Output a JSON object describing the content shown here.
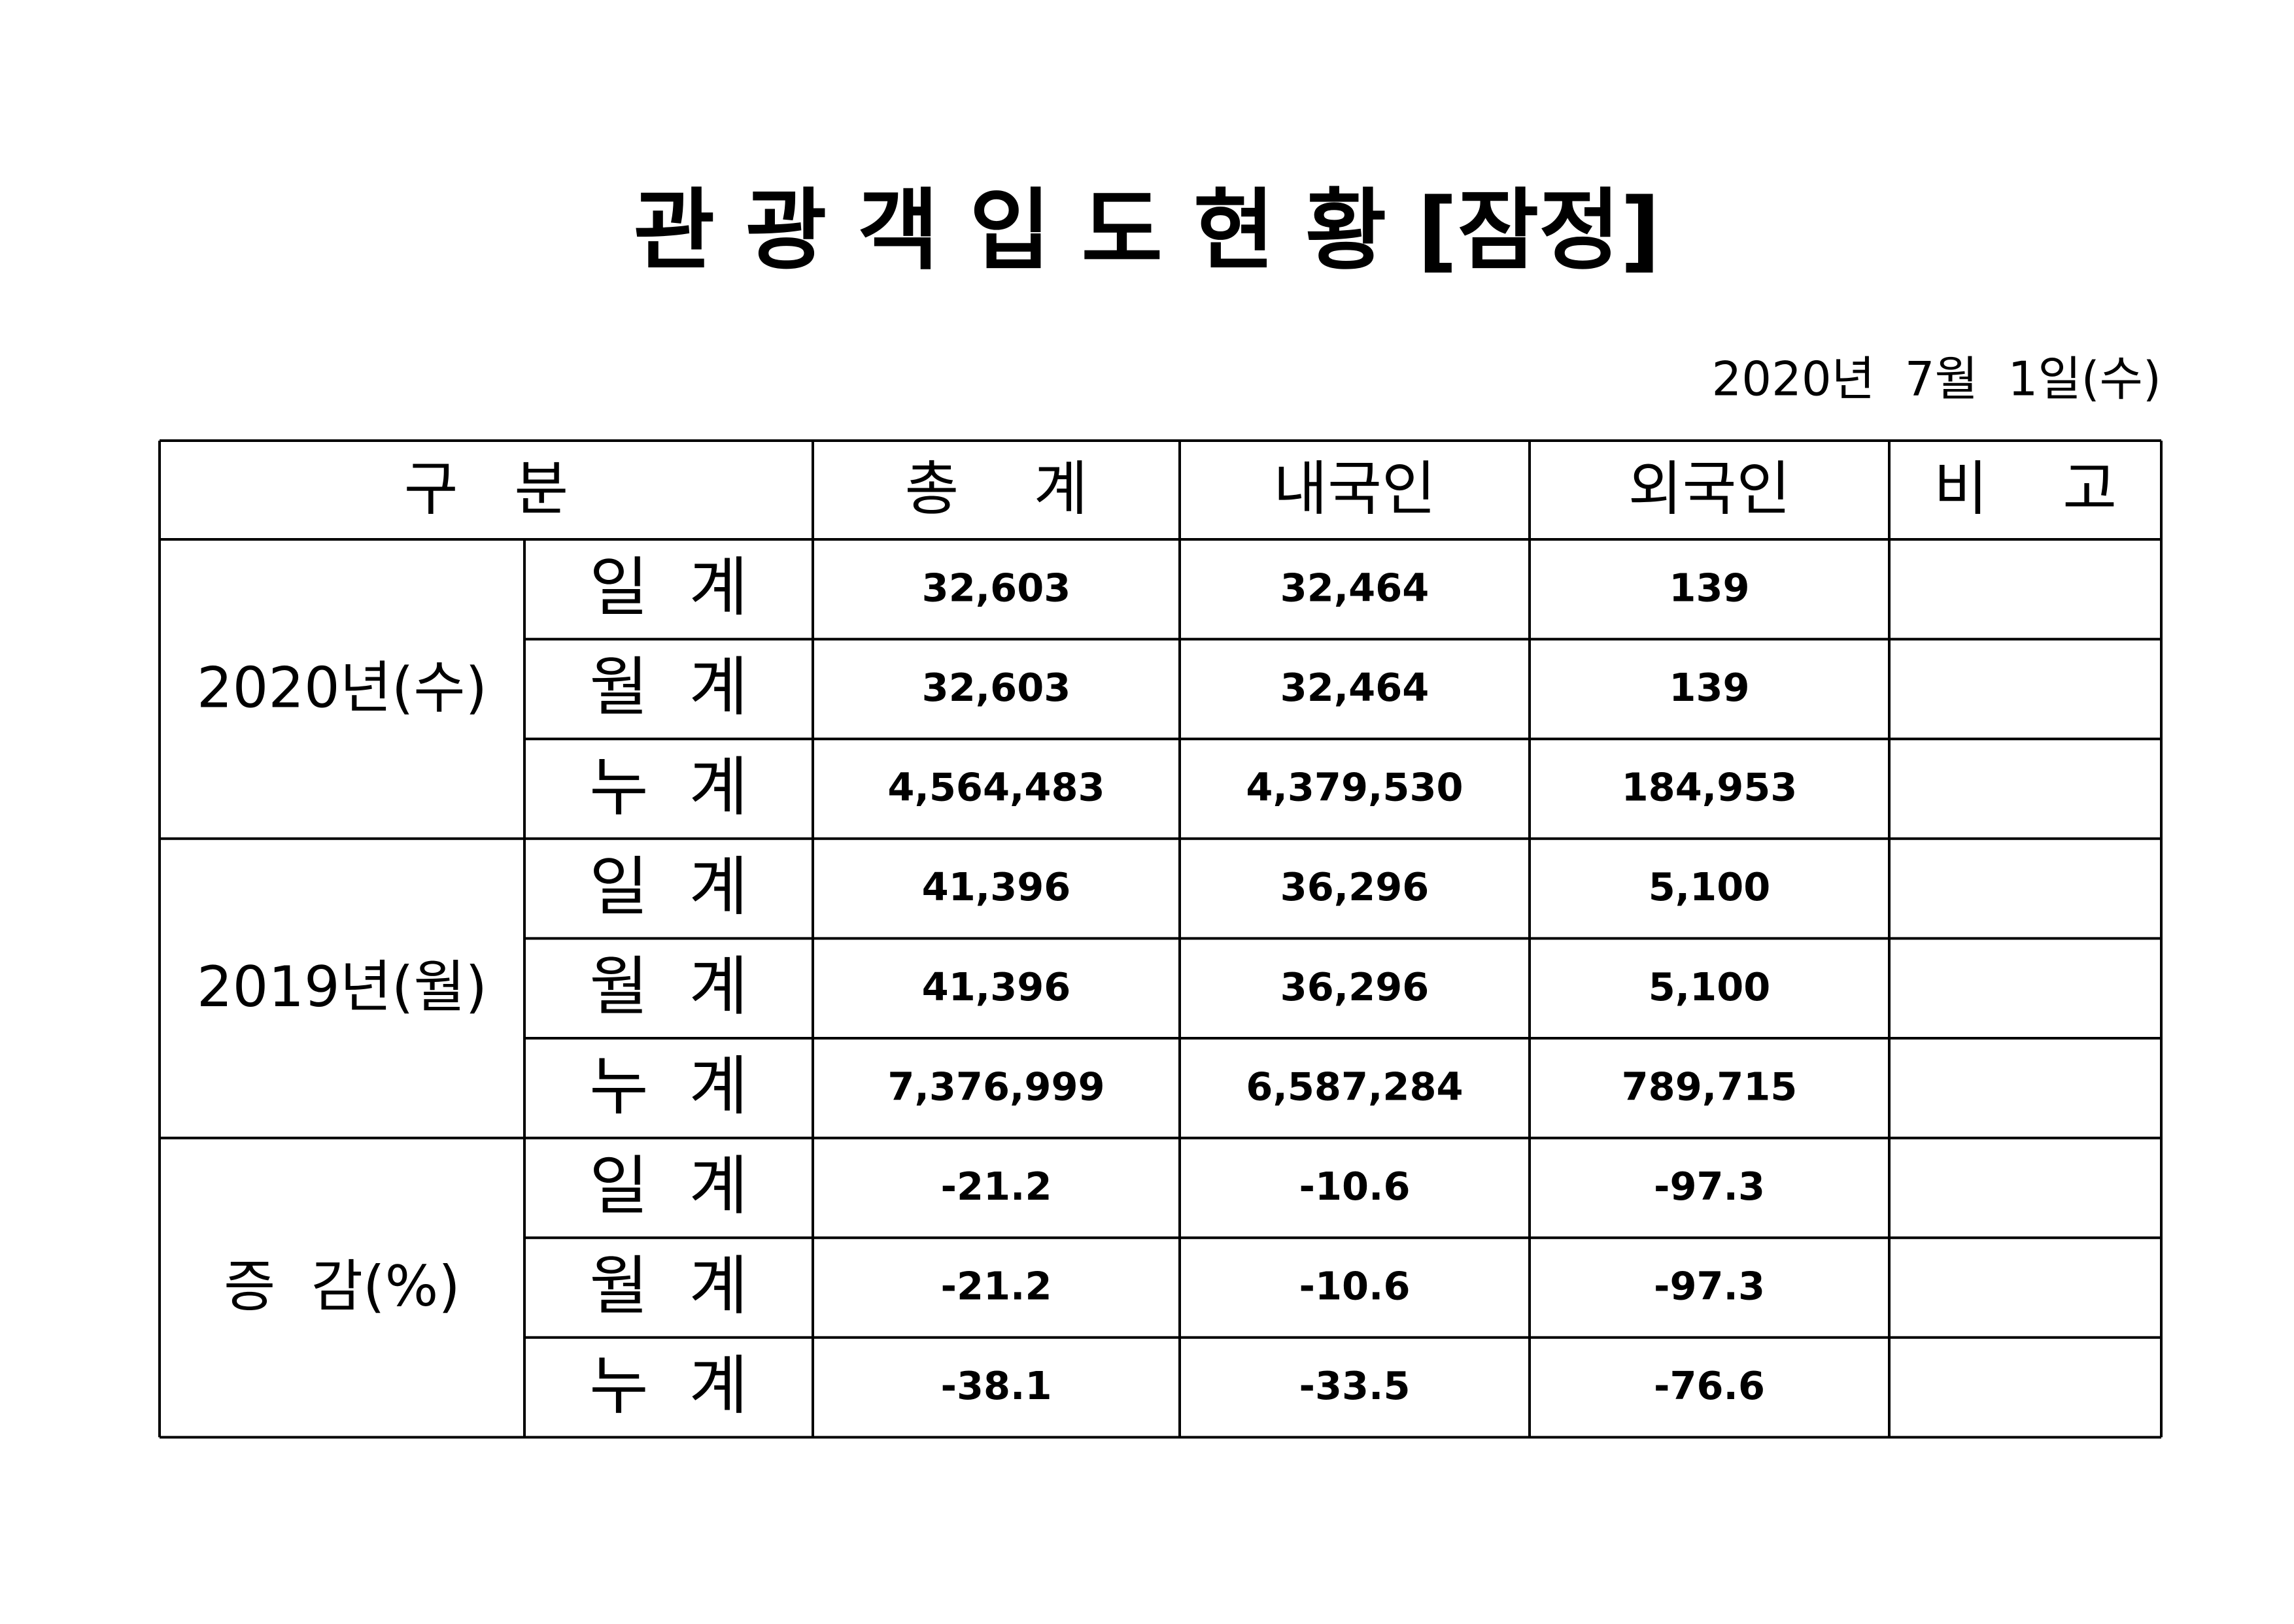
{
  "header": {
    "title": "관 광 객 입 도 현 황 [잠정]",
    "date": "2020년  7월  1일(수)"
  },
  "table": {
    "columns": [
      "구   분",
      "총    계",
      "내국인",
      "외국인",
      "비    고"
    ],
    "groups": [
      {
        "label": "2020년(수)",
        "rows": [
          {
            "label": "일  계",
            "values": [
              "32,603",
              "32,464",
              "139"
            ]
          },
          {
            "label": "월  계",
            "values": [
              "32,603",
              "32,464",
              "139"
            ]
          },
          {
            "label": "누  계",
            "values": [
              "4,564,483",
              "4,379,530",
              "184,953"
            ]
          }
        ]
      },
      {
        "label": "2019년(월)",
        "rows": [
          {
            "label": "일  계",
            "values": [
              "41,396",
              "36,296",
              "5,100"
            ]
          },
          {
            "label": "월  계",
            "values": [
              "41,396",
              "36,296",
              "5,100"
            ]
          },
          {
            "label": "누  계",
            "values": [
              "7,376,999",
              "6,587,284",
              "789,715"
            ]
          }
        ]
      },
      {
        "label": "증  감(%)",
        "rows": [
          {
            "label": "일  계",
            "values": [
              "-21.2",
              "-10.6",
              "-97.3"
            ]
          },
          {
            "label": "월  계",
            "values": [
              "-21.2",
              "-10.6",
              "-97.3"
            ]
          },
          {
            "label": "누  계",
            "values": [
              "-38.1",
              "-33.5",
              "-76.6"
            ]
          }
        ]
      }
    ]
  }
}
